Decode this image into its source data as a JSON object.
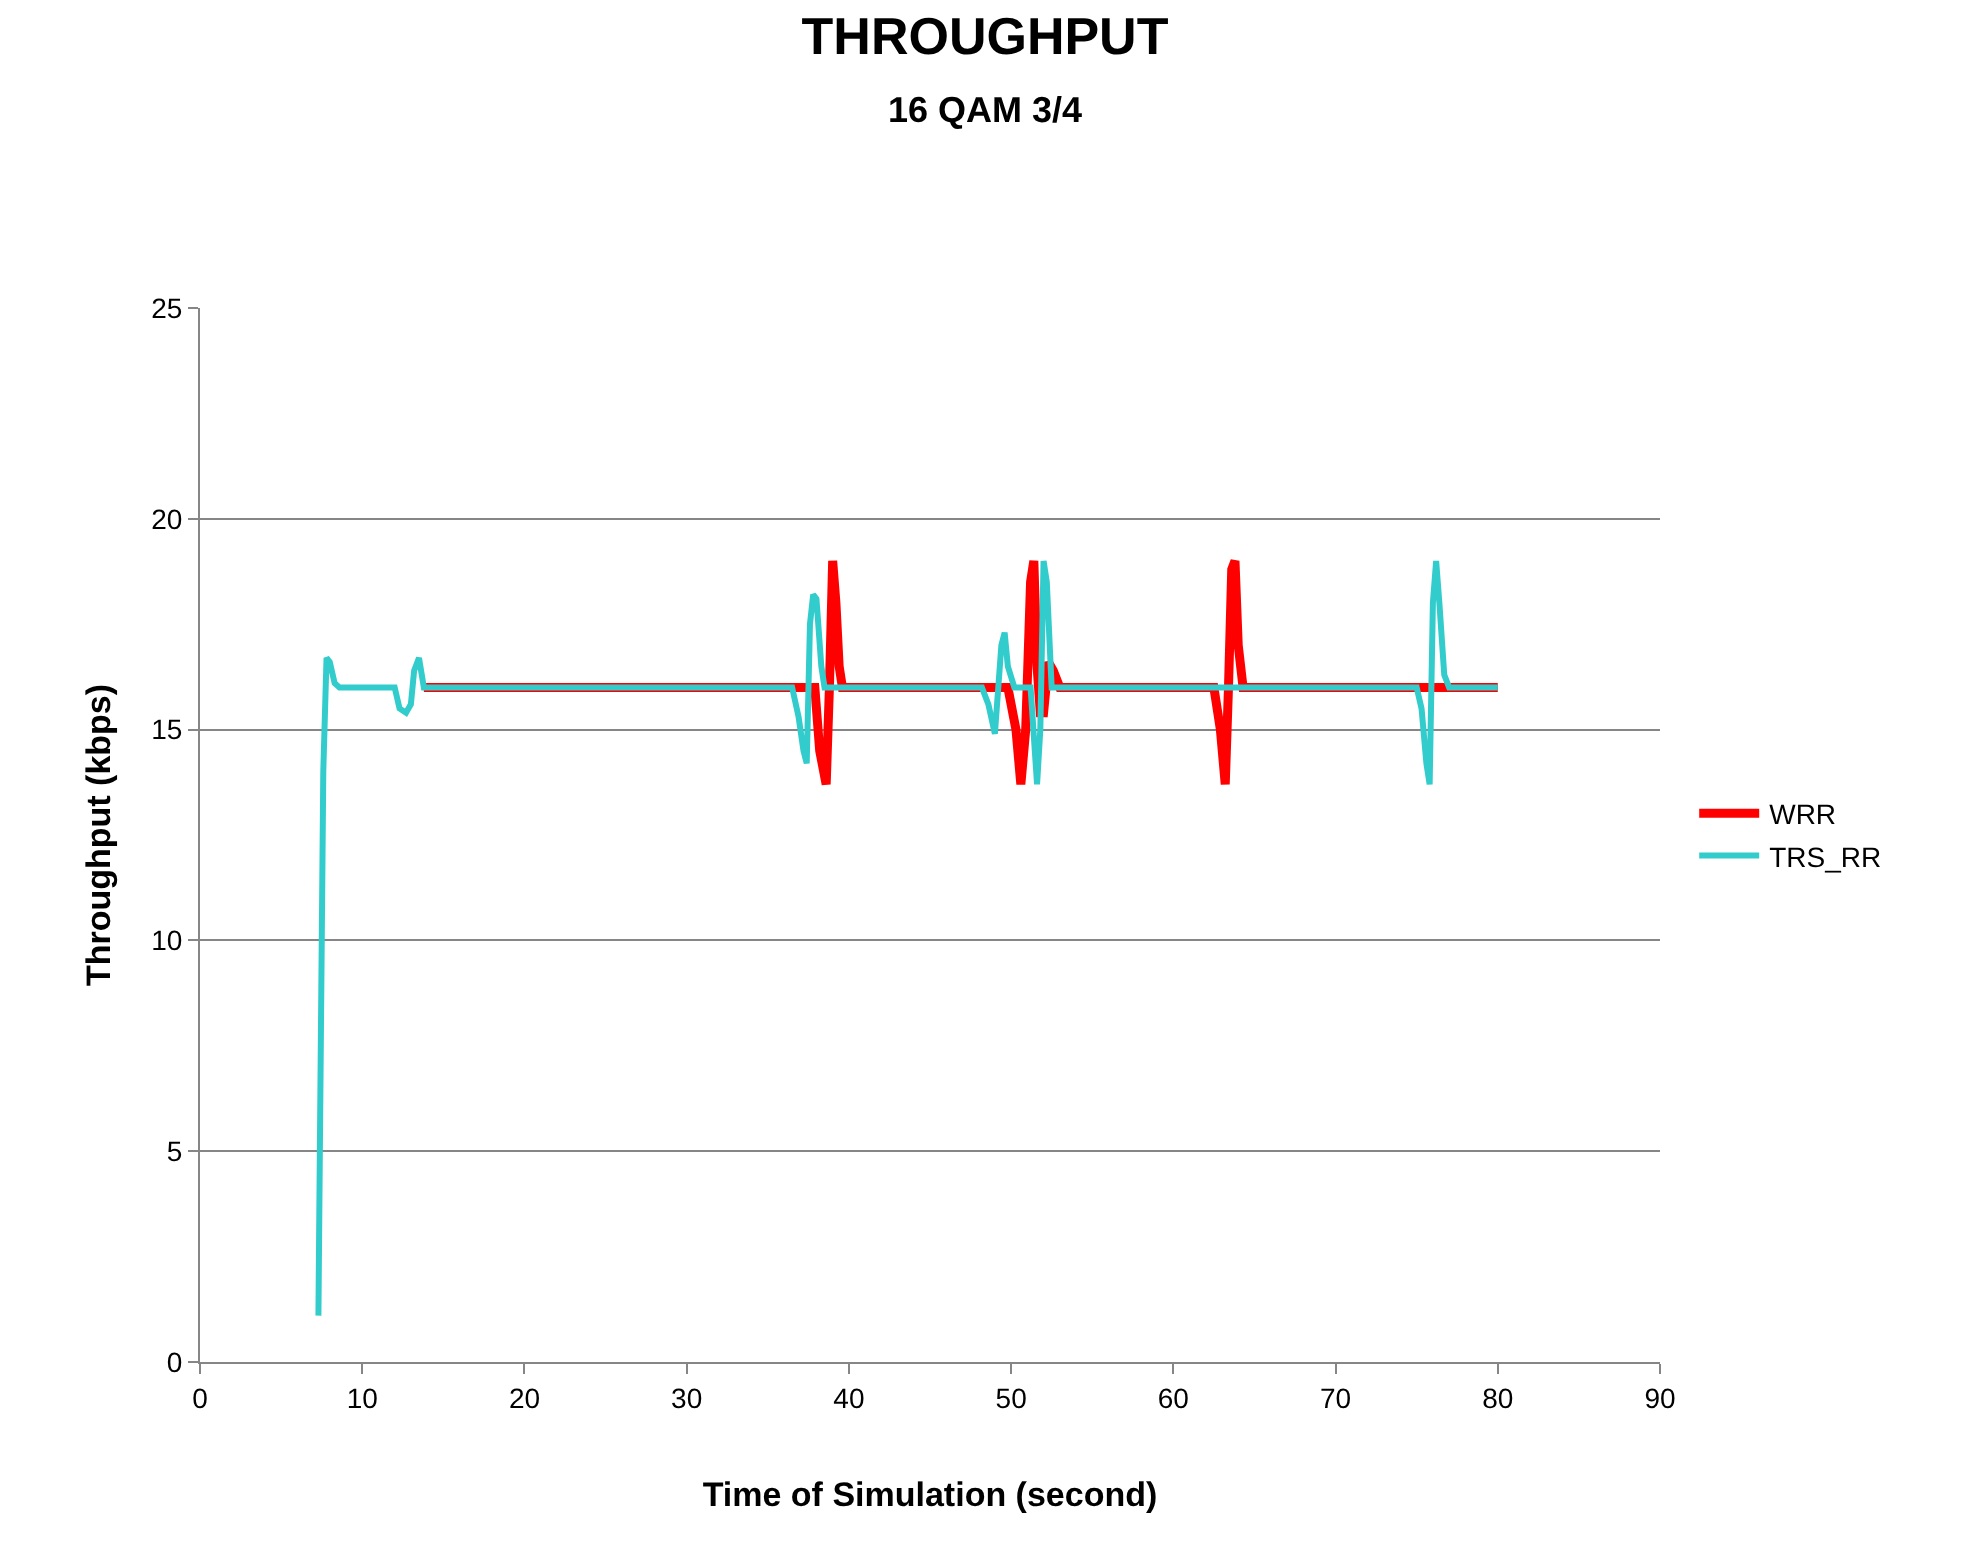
{
  "chart_data": {
    "type": "line",
    "title": "THROUGHPUT",
    "subtitle": "16 QAM 3/4",
    "xlabel": "Time of Simulation (second)",
    "ylabel": "Throughput (kbps)",
    "xlim": [
      0,
      90
    ],
    "xticks": [
      0,
      10,
      20,
      30,
      40,
      50,
      60,
      70,
      80,
      90
    ],
    "ylim": [
      0,
      25
    ],
    "yticks": [
      0,
      5,
      10,
      15,
      20,
      25
    ],
    "grid": "y",
    "legend": "right",
    "marker": "none",
    "line_style": "solid",
    "series": [
      {
        "name": "WRR",
        "color": "#ff0000",
        "x": [
          13.8,
          37.9,
          38.2,
          38.6,
          38.8,
          39.0,
          39.2,
          39.4,
          39.6,
          49.8,
          50.3,
          50.6,
          50.9,
          51.2,
          51.4,
          51.6,
          51.8,
          52.0,
          52.3,
          52.6,
          53.0,
          62.5,
          62.9,
          63.2,
          63.4,
          63.6,
          63.8,
          64.0,
          64.3,
          80.0
        ],
        "values": [
          16,
          16,
          14.5,
          13.7,
          16,
          19,
          18,
          16.5,
          16,
          16,
          15,
          13.7,
          15,
          18.5,
          19,
          16.5,
          15.4,
          15.4,
          16.6,
          16.4,
          16,
          16,
          15,
          13.7,
          16,
          18.8,
          19,
          17,
          16,
          16
        ]
      },
      {
        "name": "TRS_RR",
        "color": "#33cccc",
        "x": [
          7.3,
          7.4,
          7.6,
          7.8,
          8.0,
          8.3,
          8.6,
          12.0,
          12.3,
          12.7,
          13.0,
          13.2,
          13.5,
          13.8,
          36.5,
          36.9,
          37.2,
          37.4,
          37.6,
          37.8,
          38.0,
          38.3,
          38.5,
          48.2,
          48.6,
          49.0,
          49.4,
          49.6,
          49.8,
          50.2,
          51.2,
          51.6,
          51.8,
          52.0,
          52.2,
          52.5,
          75.0,
          75.3,
          75.6,
          75.8,
          76.0,
          76.2,
          76.4,
          76.7,
          77.0,
          80.0
        ],
        "values": [
          1.1,
          5.5,
          14,
          16.7,
          16.6,
          16.1,
          16,
          16,
          15.5,
          15.4,
          15.6,
          16.4,
          16.7,
          16,
          16,
          15.3,
          14.5,
          14.2,
          17.5,
          18.2,
          18.1,
          16.5,
          16,
          16,
          15.6,
          14.9,
          17,
          17.3,
          16.5,
          16,
          16,
          13.7,
          15,
          19,
          18.5,
          16,
          16,
          15.5,
          14.2,
          13.7,
          18,
          19,
          18,
          16.3,
          16,
          16
        ]
      }
    ]
  }
}
